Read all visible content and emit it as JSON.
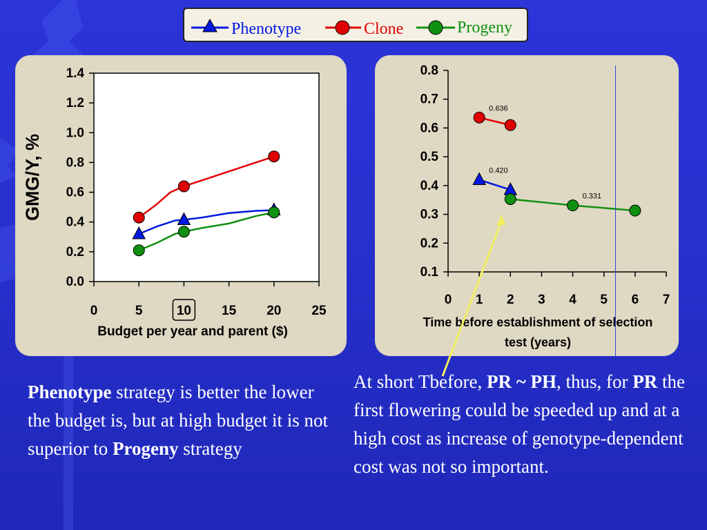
{
  "legend": {
    "items": [
      {
        "label": "Phenotype",
        "color": "#0018e0",
        "marker": "triangle"
      },
      {
        "label": "Clone",
        "color": "#e00000",
        "marker": "circle"
      },
      {
        "label": "Progeny",
        "color": "#109010",
        "marker": "circle"
      }
    ]
  },
  "chart_data": [
    {
      "type": "line",
      "xlabel": "Budget per year and parent ($)",
      "ylabel": "GMG/Y, %",
      "xlim": [
        0,
        25
      ],
      "ylim": [
        0.0,
        1.4
      ],
      "x_ticks": [
        "0",
        "5",
        "10",
        "15",
        "20",
        "25"
      ],
      "y_ticks": [
        "0.0",
        "0.2",
        "0.4",
        "0.6",
        "0.8",
        "1.0",
        "1.2",
        "1.4"
      ],
      "highlighted_x_tick": "10",
      "series": [
        {
          "name": "Phenotype",
          "color": "#0018e0",
          "marker": "triangle",
          "points": [
            [
              5,
              0.32
            ],
            [
              7,
              0.37
            ],
            [
              9,
              0.41
            ],
            [
              10,
              0.415
            ],
            [
              12,
              0.43
            ],
            [
              15,
              0.46
            ],
            [
              18,
              0.475
            ],
            [
              20,
              0.48
            ]
          ],
          "markers_at": [
            5,
            10,
            20
          ]
        },
        {
          "name": "Clone",
          "color": "#e00000",
          "marker": "circle",
          "points": [
            [
              5,
              0.43
            ],
            [
              7,
              0.52
            ],
            [
              8.5,
              0.6
            ],
            [
              10,
              0.64
            ],
            [
              12,
              0.68
            ],
            [
              15,
              0.74
            ],
            [
              18,
              0.8
            ],
            [
              20,
              0.84
            ]
          ],
          "markers_at": [
            5,
            10,
            20
          ]
        },
        {
          "name": "Progeny",
          "color": "#109010",
          "marker": "circle",
          "points": [
            [
              5,
              0.21
            ],
            [
              7,
              0.26
            ],
            [
              9,
              0.32
            ],
            [
              10,
              0.335
            ],
            [
              12,
              0.36
            ],
            [
              15,
              0.39
            ],
            [
              18,
              0.44
            ],
            [
              20,
              0.465
            ]
          ],
          "markers_at": [
            5,
            10,
            20
          ]
        }
      ]
    },
    {
      "type": "line",
      "xlabel_lines": [
        "Time before establishment of selection",
        "test (years)"
      ],
      "xlim": [
        0,
        7
      ],
      "ylim": [
        0.1,
        0.8
      ],
      "x_ticks": [
        "0",
        "1",
        "2",
        "3",
        "4",
        "5",
        "6",
        "7"
      ],
      "y_ticks": [
        "0.1",
        "0.2",
        "0.3",
        "0.4",
        "0.5",
        "0.6",
        "0.7",
        "0.8"
      ],
      "series": [
        {
          "name": "Clone",
          "color": "#e00000",
          "marker": "circle",
          "points": [
            [
              1,
              0.636
            ],
            [
              2,
              0.61
            ]
          ],
          "markers_at": [
            1,
            2
          ]
        },
        {
          "name": "Phenotype",
          "color": "#0018e0",
          "marker": "triangle",
          "points": [
            [
              1,
              0.42
            ],
            [
              2,
              0.385
            ]
          ],
          "markers_at": [
            1,
            2
          ]
        },
        {
          "name": "Progeny",
          "color": "#109010",
          "marker": "circle",
          "points": [
            [
              2,
              0.353
            ],
            [
              4,
              0.331
            ],
            [
              6,
              0.313
            ]
          ],
          "markers_at": [
            2,
            4,
            6
          ]
        }
      ],
      "annotations": [
        {
          "text": "0.636",
          "x": 1,
          "y": 0.636
        },
        {
          "text": "0.420",
          "x": 1,
          "y": 0.42
        },
        {
          "text": "0.331",
          "x": 4,
          "y": 0.331
        }
      ],
      "arrow": {
        "color": "#f0f060",
        "from_caption": "Tbefore",
        "to": [
          2,
          0.3
        ]
      }
    }
  ],
  "captions": {
    "left": {
      "strong1": "Phenotype",
      "text1": " strategy is better the lower the budget is, but at high budget it is not superior to ",
      "strong2": "Progeny",
      "text2": " strategy"
    },
    "right": {
      "text1": "At short Tbefore, ",
      "strong1": "PR ~ PH",
      "text2": ", thus, for ",
      "strong2": "PR",
      "text3": " the first flowering could be speeded up and at a high cost as increase of genotype-dependent cost was not so important."
    }
  }
}
